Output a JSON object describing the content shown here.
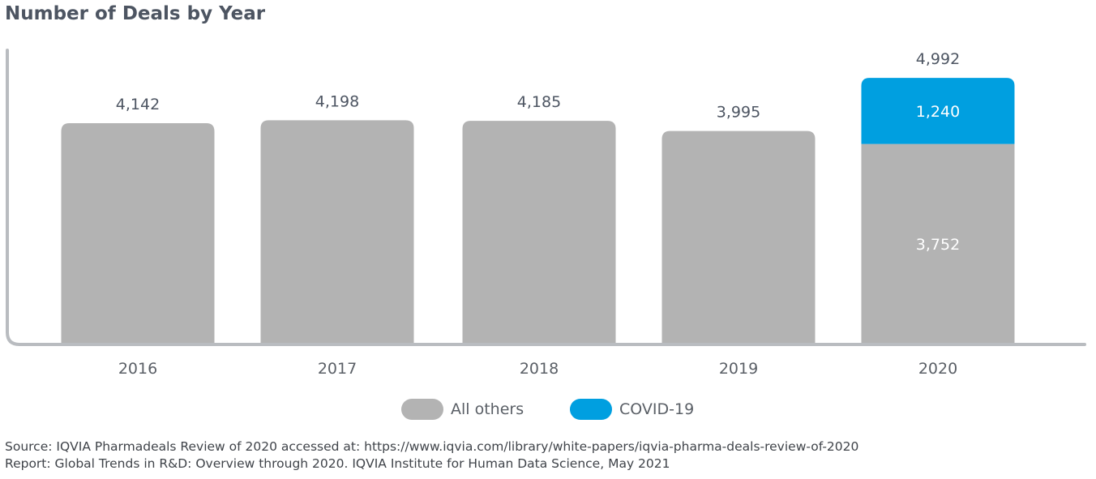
{
  "title": "Number of Deals by Year",
  "colors": {
    "all_others": "#b3b3b3",
    "covid": "#009fe0",
    "axis": "#b9bcc0",
    "text": "#4d5562",
    "label_on_bar": "#ffffff"
  },
  "legend": {
    "items": [
      {
        "label": "All others",
        "color": "#b3b3b3"
      },
      {
        "label": "COVID-19",
        "color": "#009fe0"
      }
    ]
  },
  "source": {
    "line1": "Source: IQVIA Pharmadeals Review of 2020 accessed at: https://www.iqvia.com/library/white-papers/iqvia-pharma-deals-review-of-2020",
    "line2": "Report: Global Trends in R&D: Overview through 2020. IQVIA Institute for Human Data Science, May 2021"
  },
  "chart_data": {
    "type": "bar",
    "stacked": true,
    "title": "Number of Deals by Year",
    "xlabel": "",
    "ylabel": "",
    "categories": [
      "2016",
      "2017",
      "2018",
      "2019",
      "2020"
    ],
    "series": [
      {
        "name": "All others",
        "values": [
          4142,
          4198,
          4185,
          3995,
          3752
        ]
      },
      {
        "name": "COVID-19",
        "values": [
          0,
          0,
          0,
          0,
          1240
        ]
      }
    ],
    "totals": [
      4142,
      4198,
      4185,
      3995,
      4992
    ],
    "total_labels": [
      "4,142",
      "4,198",
      "4,185",
      "3,995",
      "4,992"
    ],
    "segment_labels": {
      "All others": [
        "",
        "",
        "",
        "",
        "3,752"
      ],
      "COVID-19": [
        "",
        "",
        "",
        "",
        "1,240"
      ]
    },
    "ylim": [
      0,
      5200
    ],
    "grid": false,
    "legend_position": "bottom"
  }
}
